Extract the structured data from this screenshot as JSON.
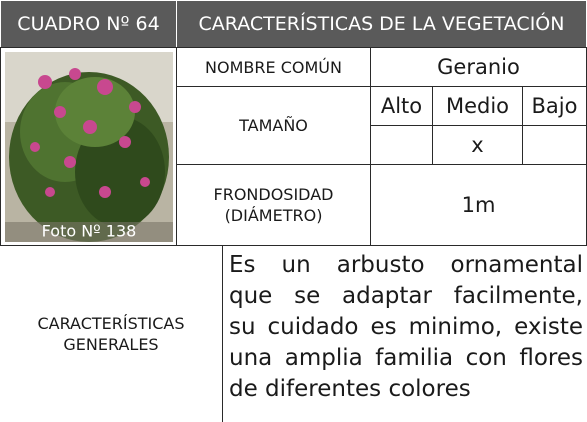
{
  "header": {
    "code": "CUADRO Nº 64",
    "title": "CARACTERÍSTICAS DE LA VEGETACIÓN"
  },
  "photo": {
    "caption": "Foto Nº 138"
  },
  "common_name": {
    "label": "NOMBRE COMÚN",
    "value": "Geranio"
  },
  "size": {
    "label": "TAMAÑO",
    "options": [
      "Alto",
      "Medio",
      "Bajo"
    ],
    "marks": [
      null,
      "x",
      null
    ]
  },
  "foliage": {
    "label_lines": [
      "FRONDOSIDAD",
      "(DIÁMETRO)"
    ],
    "value": "1m"
  },
  "general": {
    "label_lines": [
      "CARACTERÍSTICAS",
      "GENERALES"
    ],
    "text_lines": [
      "Es un arbusto ornamental",
      "que se adaptar facilmente,",
      "su cuidado es minimo, existe",
      "una amplia familia con flores",
      "de diferentes colores"
    ]
  }
}
